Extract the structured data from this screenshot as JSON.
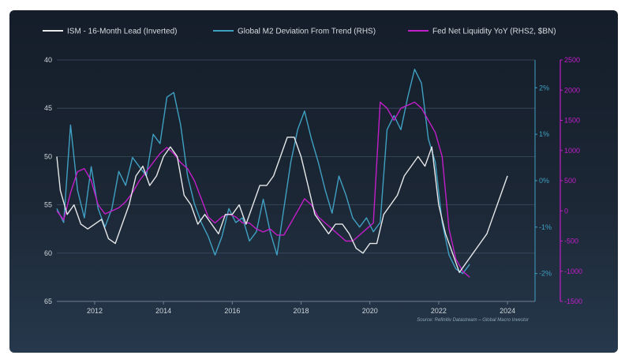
{
  "chart_data": {
    "type": "line",
    "legend": [
      {
        "name": "ISM - 16-Month Lead (Inverted)",
        "color": "#e6e8ea"
      },
      {
        "name": "Global M2 Deviation From Trend (RHS)",
        "color": "#3fa0c2"
      },
      {
        "name": "Fed Net Liquidity YoY (RHS2, $BN)",
        "color": "#c21ec9"
      }
    ],
    "legend_placement": "top",
    "x_ticks": [
      "2012",
      "2014",
      "2016",
      "2018",
      "2020",
      "2022",
      "2024"
    ],
    "xlim": [
      2010.9,
      2024.8
    ],
    "left_axis": {
      "ticks": [
        "40",
        "45",
        "50",
        "55",
        "60",
        "65"
      ],
      "ylim": [
        40,
        65
      ],
      "inverted": true,
      "color": "#cfd5db"
    },
    "right_axis": {
      "ticks": [
        "2%",
        "1%",
        "0%",
        "-1%",
        "-2%"
      ],
      "ylim": [
        -2.6,
        2.6
      ],
      "color": "#3fa0c2"
    },
    "right_axis2": {
      "ticks": [
        "2500",
        "2000",
        "1500",
        "1000",
        "500",
        "0",
        "-500",
        "-1000",
        "-1500"
      ],
      "ylim": [
        -1500,
        2500
      ],
      "color": "#c21ec9"
    },
    "grid": true,
    "source": "Source: Refinitiv Datastream – Global Macro Investor",
    "series": [
      {
        "name": "ISM - 16-Month Lead (Inverted)",
        "axis": "left",
        "color": "#e6e8ea",
        "x": [
          2010.9,
          2011.0,
          2011.2,
          2011.4,
          2011.6,
          2011.8,
          2012.0,
          2012.2,
          2012.4,
          2012.6,
          2012.8,
          2013.0,
          2013.2,
          2013.4,
          2013.6,
          2013.8,
          2014.0,
          2014.2,
          2014.4,
          2014.6,
          2014.8,
          2015.0,
          2015.2,
          2015.4,
          2015.6,
          2015.8,
          2016.0,
          2016.2,
          2016.4,
          2016.6,
          2016.8,
          2017.0,
          2017.2,
          2017.4,
          2017.6,
          2017.8,
          2018.0,
          2018.2,
          2018.4,
          2018.6,
          2018.8,
          2019.0,
          2019.2,
          2019.4,
          2019.6,
          2019.8,
          2020.0,
          2020.2,
          2020.4,
          2020.6,
          2020.8,
          2021.0,
          2021.2,
          2021.4,
          2021.6,
          2021.8,
          2022.0,
          2022.2,
          2022.4,
          2022.6,
          2022.8,
          2023.0,
          2023.2,
          2023.4,
          2023.6,
          2023.8,
          2024.0
        ],
        "y": [
          50,
          53.5,
          56,
          55,
          57,
          57.5,
          57,
          56.5,
          58.5,
          59,
          57,
          55,
          52,
          51,
          53,
          52,
          50,
          49,
          50,
          54,
          55,
          57,
          56,
          57,
          58,
          56,
          56,
          55,
          57,
          55,
          53,
          53,
          52,
          50,
          48,
          48,
          50,
          53,
          56,
          57,
          58,
          57,
          57,
          58,
          59.5,
          60,
          59,
          59,
          56,
          55,
          54,
          52,
          51,
          50,
          51,
          49,
          55,
          58,
          60,
          62,
          61,
          60,
          59,
          58,
          56,
          54,
          52
        ]
      },
      {
        "name": "Global M2 Deviation From Trend (RHS)",
        "axis": "right",
        "color": "#3fa0c2",
        "x": [
          2010.9,
          2011.1,
          2011.3,
          2011.5,
          2011.7,
          2011.9,
          2012.1,
          2012.3,
          2012.5,
          2012.7,
          2012.9,
          2013.1,
          2013.3,
          2013.5,
          2013.7,
          2013.9,
          2014.1,
          2014.3,
          2014.5,
          2014.7,
          2014.9,
          2015.1,
          2015.3,
          2015.5,
          2015.7,
          2015.9,
          2016.1,
          2016.3,
          2016.5,
          2016.7,
          2016.9,
          2017.1,
          2017.3,
          2017.5,
          2017.7,
          2017.9,
          2018.1,
          2018.3,
          2018.5,
          2018.7,
          2018.9,
          2019.1,
          2019.3,
          2019.5,
          2019.7,
          2019.9,
          2020.1,
          2020.3,
          2020.5,
          2020.7,
          2020.9,
          2021.1,
          2021.3,
          2021.5,
          2021.7,
          2021.9,
          2022.1,
          2022.3,
          2022.5,
          2022.7,
          2022.9
        ],
        "y": [
          -0.6,
          -0.9,
          1.2,
          -0.2,
          -0.8,
          0.3,
          -0.6,
          -1.0,
          -0.6,
          0.2,
          -0.1,
          0.5,
          0.3,
          0.1,
          1.0,
          0.8,
          1.8,
          1.9,
          1.2,
          0.1,
          -0.5,
          -0.9,
          -1.2,
          -1.6,
          -1.2,
          -0.6,
          -0.9,
          -0.8,
          -1.3,
          -1.1,
          -0.4,
          -1.1,
          -1.6,
          -0.6,
          0.4,
          1.1,
          1.5,
          0.9,
          0.4,
          -0.2,
          -0.7,
          0.1,
          -0.3,
          -0.8,
          -1.0,
          -0.8,
          -1.1,
          -0.9,
          1.1,
          1.4,
          1.1,
          1.8,
          2.4,
          2.1,
          0.9,
          0.4,
          -0.9,
          -1.6,
          -1.9,
          -2.0,
          -1.8
        ]
      },
      {
        "name": "Fed Net Liquidity YoY (RHS2, $BN)",
        "axis": "right2",
        "color": "#c21ec9",
        "x": [
          2010.9,
          2011.1,
          2011.3,
          2011.5,
          2011.7,
          2011.9,
          2012.1,
          2012.3,
          2012.5,
          2012.7,
          2012.9,
          2013.1,
          2013.3,
          2013.5,
          2013.7,
          2013.9,
          2014.1,
          2014.3,
          2014.5,
          2014.7,
          2014.9,
          2015.1,
          2015.3,
          2015.5,
          2015.7,
          2015.9,
          2016.1,
          2016.3,
          2016.5,
          2016.7,
          2016.9,
          2017.1,
          2017.3,
          2017.5,
          2017.7,
          2017.9,
          2018.1,
          2018.3,
          2018.5,
          2018.7,
          2018.9,
          2019.1,
          2019.3,
          2019.5,
          2019.7,
          2019.9,
          2020.1,
          2020.3,
          2020.5,
          2020.7,
          2020.9,
          2021.1,
          2021.3,
          2021.5,
          2021.7,
          2021.9,
          2022.1,
          2022.3,
          2022.5,
          2022.7,
          2022.9
        ],
        "y": [
          0,
          -150,
          300,
          650,
          700,
          500,
          100,
          -50,
          0,
          50,
          150,
          300,
          500,
          650,
          800,
          950,
          1050,
          950,
          800,
          700,
          500,
          200,
          -100,
          -200,
          -100,
          -50,
          -100,
          -200,
          -200,
          -300,
          -350,
          -300,
          -400,
          -400,
          -200,
          0,
          200,
          100,
          -100,
          -200,
          -300,
          -400,
          -500,
          -500,
          -400,
          -300,
          -200,
          1800,
          1700,
          1500,
          1700,
          1750,
          1800,
          1700,
          1500,
          1300,
          900,
          -300,
          -800,
          -1000,
          -1100
        ]
      }
    ]
  }
}
